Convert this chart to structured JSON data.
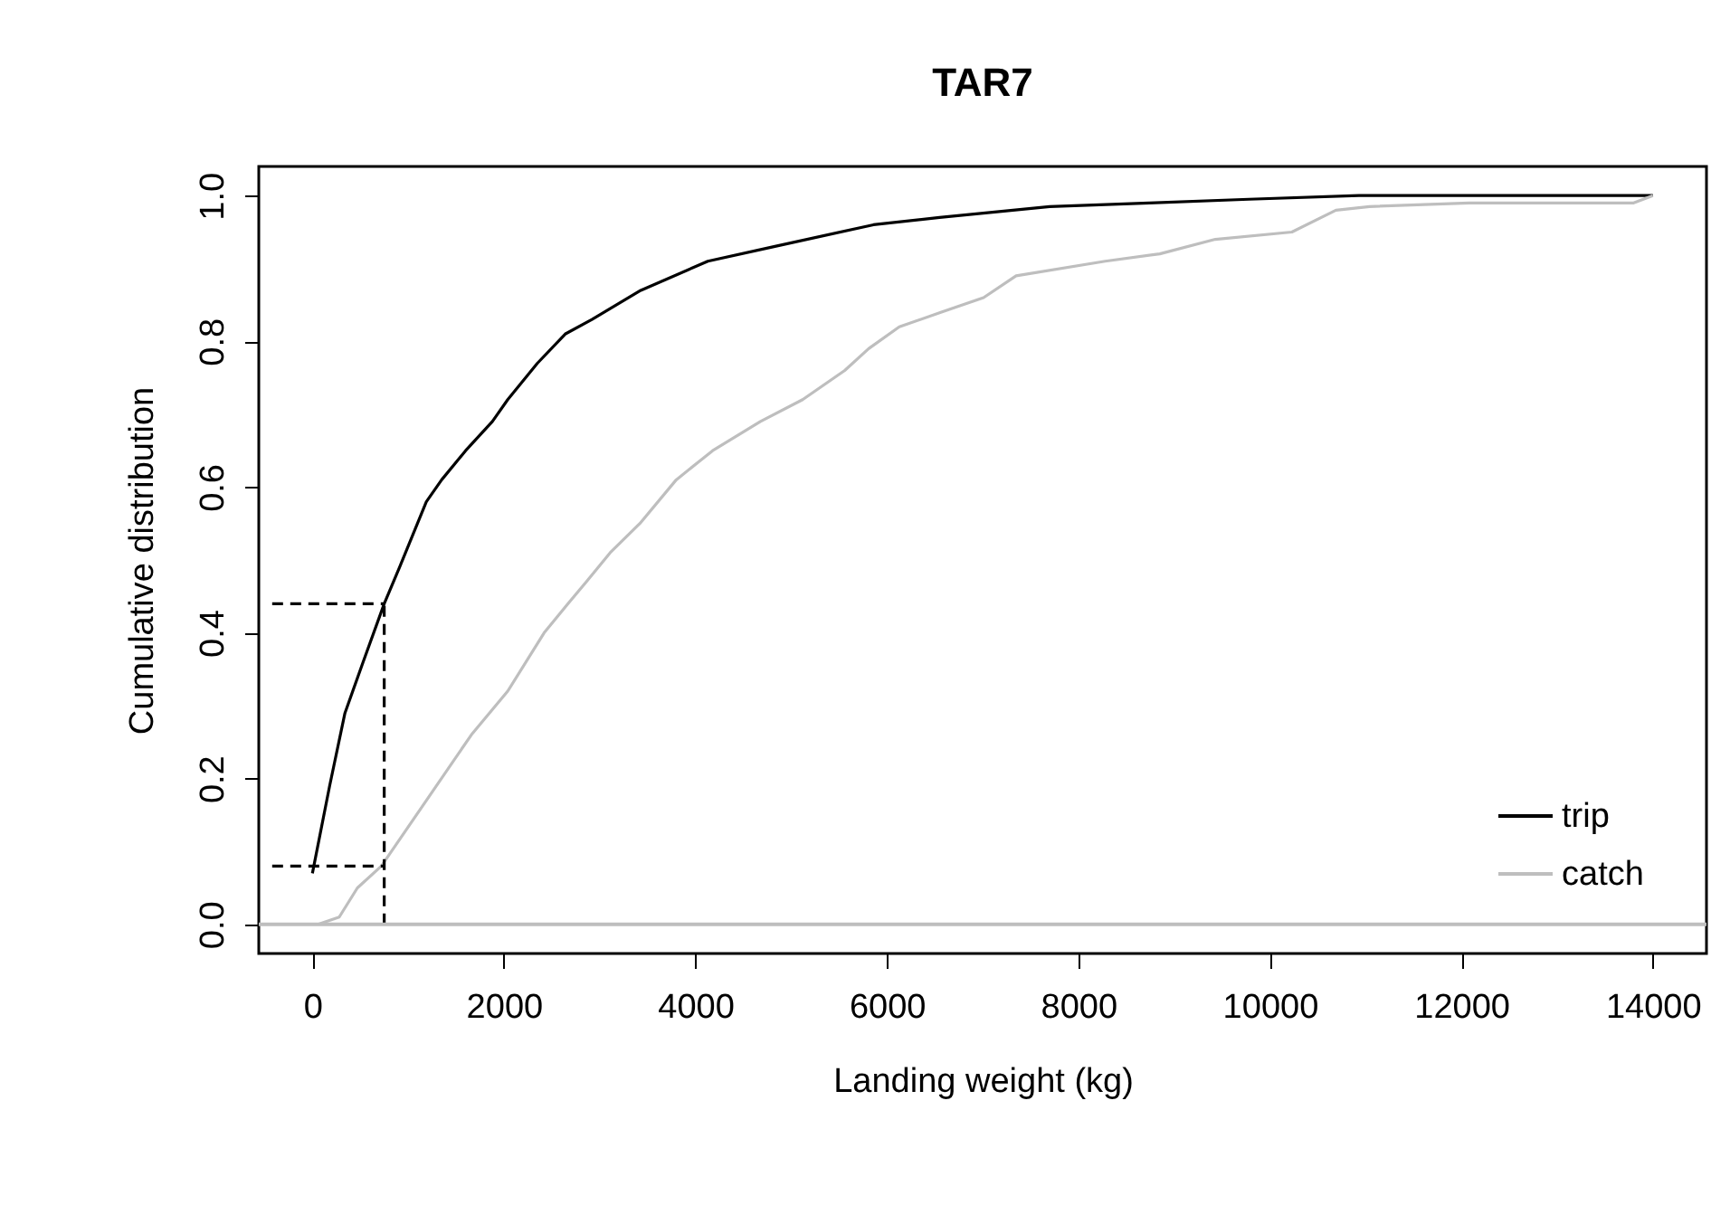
{
  "chart_data": {
    "type": "line",
    "title": "TAR7",
    "xlabel": "Landing weight (kg)",
    "ylabel": "Cumulative distribution",
    "xlim": [
      -560,
      14560
    ],
    "ylim": [
      -0.04,
      1.04
    ],
    "xticks": [
      0,
      2000,
      4000,
      6000,
      8000,
      10000,
      12000,
      14000
    ],
    "yticks": [
      {
        "value": 0,
        "label": "0.0"
      },
      {
        "value": 0.2,
        "label": "0.2"
      },
      {
        "value": 0.4,
        "label": "0.4"
      },
      {
        "value": 0.6,
        "label": "0.6"
      },
      {
        "value": 0.8,
        "label": "0.8"
      },
      {
        "value": 1,
        "label": "1.0"
      }
    ],
    "grid": false,
    "legend": "bottom right",
    "marker": "none",
    "series": [
      {
        "name": "trip",
        "color": "#000000",
        "x": [
          0,
          180,
          340,
          530,
          750,
          910,
          1190,
          1350,
          1600,
          1880,
          2040,
          2350,
          2640,
          2920,
          3430,
          4130,
          4820,
          5860,
          6550,
          7700,
          8740,
          9780,
          10930,
          14000
        ],
        "values": [
          0.07,
          0.19,
          0.29,
          0.36,
          0.44,
          0.49,
          0.58,
          0.61,
          0.65,
          0.69,
          0.72,
          0.77,
          0.81,
          0.83,
          0.87,
          0.91,
          0.93,
          0.96,
          0.97,
          0.985,
          0.99,
          0.995,
          1.0,
          1.0
        ]
      },
      {
        "name": "catch",
        "color": "#bebebe",
        "x": [
          60,
          280,
          470,
          720,
          1190,
          1660,
          2040,
          2420,
          2670,
          2860,
          3110,
          3420,
          3800,
          4180,
          4680,
          5120,
          5560,
          5810,
          6130,
          6570,
          7010,
          7350,
          8280,
          8850,
          9430,
          10230,
          10690,
          11040,
          12080,
          13800,
          14000
        ],
        "values": [
          0.0,
          0.01,
          0.05,
          0.08,
          0.17,
          0.26,
          0.32,
          0.4,
          0.44,
          0.47,
          0.51,
          0.55,
          0.61,
          0.65,
          0.69,
          0.72,
          0.76,
          0.79,
          0.82,
          0.84,
          0.86,
          0.89,
          0.91,
          0.92,
          0.94,
          0.95,
          0.98,
          0.985,
          0.99,
          0.99,
          1.0
        ]
      },
      {
        "color": "#000000",
        "line_style": "dashed",
        "x": [
          -420,
          750
        ],
        "values": [
          0.44,
          0.44
        ]
      },
      {
        "color": "#000000",
        "line_style": "dashed",
        "x": [
          -420,
          750
        ],
        "values": [
          0.08,
          0.08
        ]
      },
      {
        "color": "#000000",
        "line_style": "dashed",
        "x": [
          750,
          750
        ],
        "values": [
          0,
          0.44
        ]
      }
    ],
    "ref_lines": [
      {
        "axis": "y",
        "value": 0,
        "color": "#bebebe"
      }
    ]
  }
}
